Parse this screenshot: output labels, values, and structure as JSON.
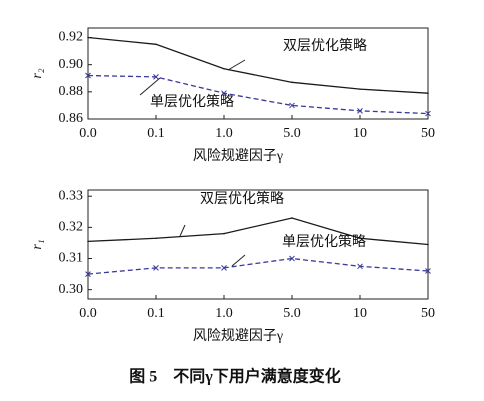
{
  "chart_data": [
    {
      "type": "line",
      "x_label": "风险规避因子γ",
      "y_label": "r₂",
      "categories": [
        "0.0",
        "0.1",
        "1.0",
        "5.0",
        "10",
        "50"
      ],
      "series": [
        {
          "name": "双层优化策略",
          "color": "#1a1a1a",
          "style": "solid",
          "values": [
            0.92,
            0.915,
            0.897,
            0.887,
            0.882,
            0.879
          ]
        },
        {
          "name": "单层优化策略",
          "color": "#3a3a9a",
          "style": "dashed",
          "marker": "x",
          "values": [
            0.892,
            0.891,
            0.879,
            0.87,
            0.866,
            0.864
          ]
        }
      ],
      "ylim": [
        0.86,
        0.927
      ],
      "yticks": [
        {
          "value": 0.86,
          "label": "0.86"
        },
        {
          "value": 0.88,
          "label": "0.88"
        },
        {
          "value": 0.9,
          "label": "0.90"
        },
        {
          "value": 0.92,
          "label": "0.92"
        }
      ]
    },
    {
      "type": "line",
      "x_label": "风险规避因子γ",
      "y_label": "r₁",
      "categories": [
        "0.0",
        "0.1",
        "1.0",
        "5.0",
        "10",
        "50"
      ],
      "series": [
        {
          "name": "双层优化策略",
          "color": "#1a1a1a",
          "style": "solid",
          "values": [
            0.3155,
            0.3165,
            0.318,
            0.323,
            0.3165,
            0.3145
          ]
        },
        {
          "name": "单层优化策略",
          "color": "#3a3a9a",
          "style": "dashed",
          "marker": "x",
          "values": [
            0.305,
            0.307,
            0.307,
            0.31,
            0.3075,
            0.306
          ]
        }
      ],
      "ylim": [
        0.297,
        0.332
      ],
      "yticks": [
        {
          "value": 0.3,
          "label": "0.30"
        },
        {
          "value": 0.31,
          "label": "0.31"
        },
        {
          "value": 0.32,
          "label": "0.32"
        },
        {
          "value": 0.33,
          "label": "0.33"
        }
      ]
    }
  ],
  "caption": "图 5　不同γ下用户满意度变化"
}
